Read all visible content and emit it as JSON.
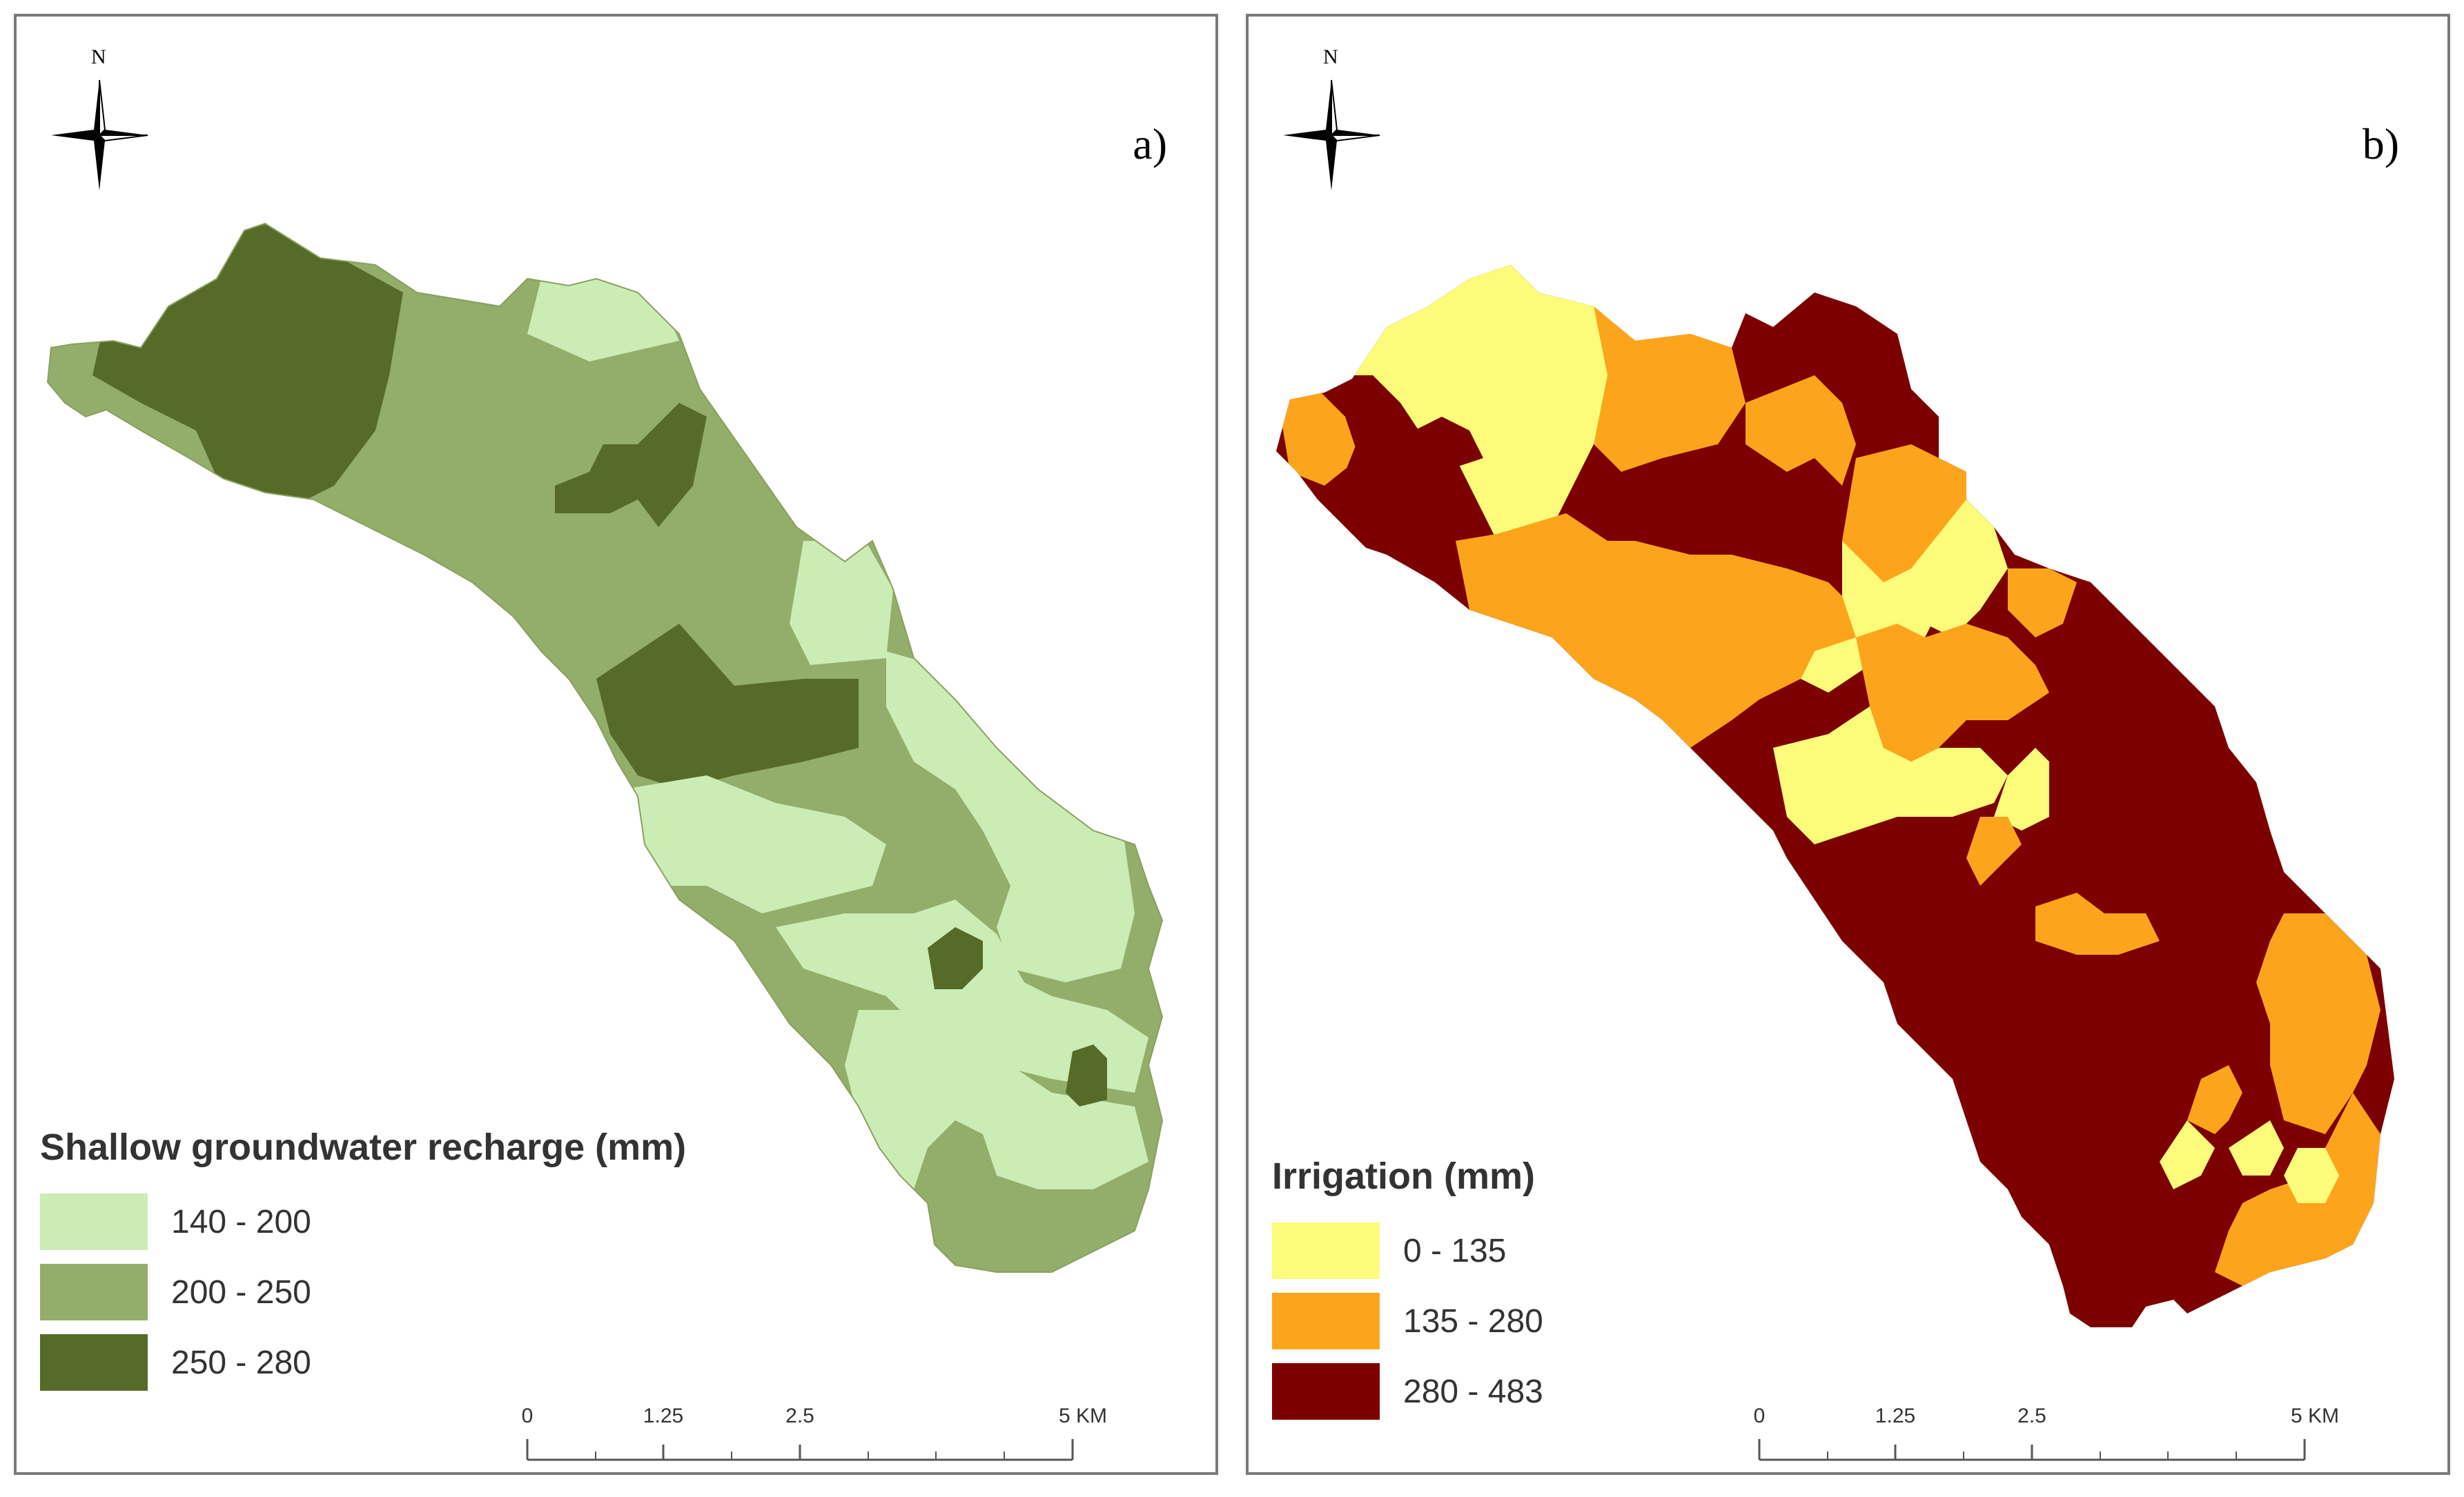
{
  "panels": [
    {
      "label": "a)",
      "north": "N",
      "legend": {
        "title": "Shallow groundwater recharge (mm)",
        "classes": [
          {
            "label": "140 - 200",
            "color": "#ccecb6"
          },
          {
            "label": "200 - 250",
            "color": "#93ad6a"
          },
          {
            "label": "250 - 280",
            "color": "#566b28"
          }
        ]
      },
      "scale": {
        "labels": [
          "0",
          "1.25",
          "2.5",
          "5 KM"
        ],
        "values_km": [
          0,
          1.25,
          2.5,
          5
        ]
      }
    },
    {
      "label": "b)",
      "north": "N",
      "legend": {
        "title": "Irrigation (mm)",
        "classes": [
          {
            "label": "0 - 135",
            "color": "#fcfc7a"
          },
          {
            "label": "135 - 280",
            "color": "#fca51c"
          },
          {
            "label": "280 - 483",
            "color": "#7d0000"
          }
        ]
      },
      "scale": {
        "labels": [
          "0",
          "1.25",
          "2.5",
          "5 KM"
        ],
        "values_km": [
          0,
          1.25,
          2.5,
          5
        ]
      }
    }
  ]
}
